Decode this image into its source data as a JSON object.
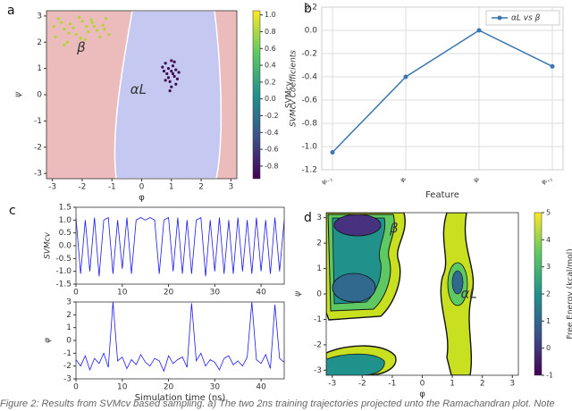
{
  "panel_labels": [
    "a",
    "b",
    "c",
    "d"
  ],
  "caption": "Figure 2: Results from SVMcv based sampling. a) The two 2ns training trajectories projected unto the Ramachandran plot. Note",
  "chart_data": [
    {
      "type": "scatter",
      "xlabel": "φ",
      "ylabel": "ψ",
      "xlim": [
        -3.2,
        3.2
      ],
      "ylim": [
        -3.2,
        3.2
      ],
      "xticks": [
        -3,
        -2,
        -1,
        0,
        1,
        2,
        3
      ],
      "yticks": [
        -3,
        -2,
        -1,
        0,
        1,
        2,
        3
      ],
      "annotations": [
        "β",
        "αL"
      ],
      "colorbar": {
        "label": "SVMcv",
        "lim": [
          -0.95,
          1.05
        ],
        "ticks": [
          {
            "value": 1,
            "label": "1.0"
          },
          0.8,
          0.6,
          0.4,
          0.2,
          {
            "value": 0,
            "label": "0.0"
          },
          -0.2,
          -0.4,
          -0.6,
          -0.8
        ]
      },
      "series": [
        {
          "color": "#b4d335",
          "x": [
            -2.8,
            -2.6,
            -2.4,
            -2.2,
            -2.0,
            -1.8,
            -1.6,
            -1.4,
            -1.2,
            -2.9,
            -2.5,
            -2.1,
            -1.9,
            -1.7,
            -1.5,
            -1.3,
            -2.7,
            -2.3,
            -1.1,
            -2.95,
            -2.45,
            -2.05,
            -1.65,
            -1.25,
            -2.6,
            -1.85
          ],
          "values": [
            2.9,
            2.5,
            2.7,
            2.3,
            2.8,
            2.4,
            2.6,
            2.2,
            2.9,
            2.2,
            2.0,
            2.95,
            2.1,
            2.85,
            2.45,
            2.65,
            2.75,
            2.55,
            2.3,
            2.6,
            2.35,
            2.15,
            2.75,
            2.5,
            1.9,
            2.6
          ]
        },
        {
          "color": "#3b0f50",
          "x": [
            0.8,
            0.9,
            1.0,
            1.1,
            0.95,
            1.05,
            0.85,
            1.15,
            1.2,
            0.75,
            1.0,
            0.9,
            1.1,
            0.8,
            1.05,
            1.25,
            0.7,
            0.95,
            1.0,
            1.15
          ],
          "values": [
            1.2,
            1.0,
            0.9,
            0.7,
            0.5,
            1.1,
            0.8,
            0.95,
            0.6,
            0.9,
            0.3,
            0.65,
            1.25,
            0.55,
            0.8,
            0.85,
            1.05,
            0.15,
            1.3,
            0.4
          ]
        }
      ]
    },
    {
      "type": "line",
      "xlabel": "Feature",
      "ylabel": "SVMcv Coefficients",
      "grid": true,
      "legend": "upper right",
      "categories": [
        "ψᵢ₋₁",
        "φᵢ",
        "ψᵢ",
        "φᵢ₊₁"
      ],
      "ylim": [
        -1.2,
        0.2
      ],
      "yticks": [
        {
          "value": -1.2,
          "label": "-1.2"
        },
        {
          "value": -1,
          "label": "-1.0"
        },
        -0.8,
        -0.6,
        -0.4,
        -0.2,
        {
          "value": 0,
          "label": "0.0"
        },
        0.2
      ],
      "series": [
        {
          "name": "αL vs β",
          "color": "#3a76af",
          "values": [
            -1.05,
            -0.4,
            0.0,
            -0.31
          ]
        }
      ]
    },
    {
      "type": "line",
      "ylabel": "SVMcv",
      "xlim": [
        0,
        45
      ],
      "xticks": [
        0,
        10,
        20,
        30,
        40
      ],
      "ylim": [
        -1.5,
        1.5
      ],
      "yticks": [
        -1.5,
        {
          "value": -1,
          "label": "-1.0"
        },
        -0.5,
        {
          "value": 0,
          "label": "0.0"
        },
        0.5,
        {
          "value": 1,
          "label": "1.0"
        },
        1.5
      ],
      "x": [
        0,
        1,
        2,
        3,
        4,
        5,
        6,
        7,
        8,
        9,
        10,
        11,
        12,
        13,
        14,
        15,
        16,
        17,
        18,
        19,
        20,
        21,
        22,
        23,
        24,
        25,
        26,
        27,
        28,
        29,
        30,
        31,
        32,
        33,
        34,
        35,
        36,
        37,
        38,
        39,
        40,
        41,
        42,
        43,
        44,
        45
      ],
      "series": [
        {
          "color": "#1a1aee",
          "values": [
            1.1,
            -1.1,
            1.0,
            -1.0,
            1.1,
            -1.2,
            1.0,
            1.1,
            -1.1,
            1.0,
            -0.9,
            1.1,
            -1.1,
            1.0,
            1.1,
            1.0,
            1.1,
            1.0,
            -1.1,
            1.0,
            1.1,
            -1.0,
            1.1,
            -1.1,
            1.0,
            -1.1,
            1.0,
            1.1,
            -1.2,
            1.0,
            -1.0,
            1.1,
            -1.1,
            1.0,
            -1.1,
            1.1,
            -1.0,
            1.0,
            -1.1,
            1.1,
            -1.0,
            1.0,
            -1.1,
            1.1,
            -1.0,
            1.0
          ]
        }
      ]
    },
    {
      "type": "line",
      "ylabel": "φ",
      "xlabel": "Simulation time (ns)",
      "xlim": [
        0,
        45
      ],
      "xticks": [
        0,
        10,
        20,
        30,
        40
      ],
      "ylim": [
        -3,
        3
      ],
      "yticks": [
        -3,
        -2,
        -1,
        0,
        1,
        2,
        3
      ],
      "x": [
        0,
        1,
        2,
        3,
        4,
        5,
        6,
        7,
        8,
        9,
        10,
        11,
        12,
        13,
        14,
        15,
        16,
        17,
        18,
        19,
        20,
        21,
        22,
        23,
        24,
        25,
        26,
        27,
        28,
        29,
        30,
        31,
        32,
        33,
        34,
        35,
        36,
        37,
        38,
        39,
        40,
        41,
        42,
        43,
        44,
        45
      ],
      "series": [
        {
          "color": "#1a1aee",
          "values": [
            -1.5,
            -2.0,
            -1.2,
            -2.3,
            -1.4,
            -1.8,
            -1.0,
            -2.1,
            3.0,
            -1.6,
            -1.3,
            -2.2,
            -1.5,
            -1.9,
            -1.1,
            -1.7,
            -2.0,
            -1.4,
            -1.6,
            -2.4,
            -1.2,
            -1.8,
            -1.5,
            -1.3,
            -2.1,
            2.9,
            -1.6,
            -1.0,
            -2.0,
            -1.5,
            -1.7,
            -2.3,
            -1.4,
            -1.2,
            -1.9,
            -1.6,
            -2.0,
            -1.3,
            3.0,
            -1.5,
            -1.8,
            -1.1,
            -2.2,
            2.8,
            -1.4,
            -1.7
          ]
        }
      ]
    },
    {
      "type": "contour",
      "xlabel": "φ",
      "ylabel": "ψ",
      "xlim": [
        -3.2,
        3.2
      ],
      "ylim": [
        -3.2,
        3.2
      ],
      "xticks": [
        -3,
        -2,
        -1,
        0,
        1,
        2,
        3
      ],
      "yticks": [
        -3,
        -2,
        -1,
        0,
        1,
        2,
        3
      ],
      "annotations": [
        "β",
        "αL"
      ],
      "colorbar": {
        "label": "Free Energy (kcal/mol)",
        "lim": [
          -1,
          5
        ],
        "ticks": [
          -1,
          0,
          1,
          2,
          3,
          4,
          5
        ]
      }
    }
  ]
}
